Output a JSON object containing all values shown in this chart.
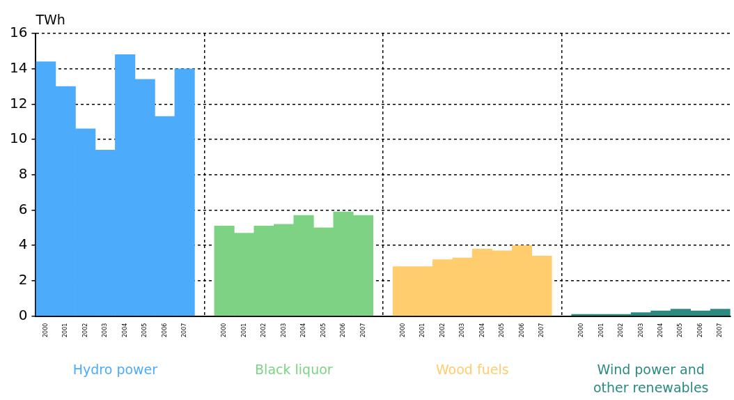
{
  "chart_data": {
    "type": "bar",
    "ylabel": "TWh",
    "categories": [
      "2000",
      "2001",
      "2002",
      "2003",
      "2004",
      "2005",
      "2006",
      "2007",
      null,
      "2000",
      "2001",
      "2002",
      "2003",
      "2004",
      "2005",
      "2006",
      "2007",
      null,
      "2000",
      "2001",
      "2002",
      "2003",
      "2004",
      "2005",
      "2006",
      "2007",
      null,
      "2000",
      "2001",
      "2002",
      "2003",
      "2004",
      "2005",
      "2006",
      "2007"
    ],
    "series": [
      {
        "name": "Hydro power",
        "color": "#4dabfc",
        "values": [
          14.4,
          13.0,
          10.6,
          9.4,
          14.8,
          13.4,
          11.3,
          14.0,
          null,
          null,
          null,
          null,
          null,
          null,
          null,
          null,
          null,
          null,
          null,
          null,
          null,
          null,
          null,
          null,
          null,
          null,
          null,
          null,
          null,
          null,
          null,
          null,
          null,
          null,
          null
        ]
      },
      {
        "name": "Black liquor",
        "color": "#7dd383",
        "values": [
          null,
          null,
          null,
          null,
          null,
          null,
          null,
          null,
          null,
          5.1,
          4.7,
          5.1,
          5.2,
          5.7,
          5.0,
          5.9,
          5.7,
          null,
          null,
          null,
          null,
          null,
          null,
          null,
          null,
          null,
          null,
          null,
          null,
          null,
          null,
          null,
          null,
          null,
          null
        ]
      },
      {
        "name": "Wood fuels",
        "color": "#ffcc6e",
        "values": [
          null,
          null,
          null,
          null,
          null,
          null,
          null,
          null,
          null,
          null,
          null,
          null,
          null,
          null,
          null,
          null,
          null,
          null,
          2.8,
          2.8,
          3.2,
          3.3,
          3.8,
          3.7,
          4.0,
          3.4,
          null,
          null,
          null,
          null,
          null,
          null,
          null,
          null,
          null
        ]
      },
      {
        "name": "Wind power and other renewables",
        "color": "#2a8a80",
        "values": [
          null,
          null,
          null,
          null,
          null,
          null,
          null,
          null,
          null,
          null,
          null,
          null,
          null,
          null,
          null,
          null,
          null,
          null,
          null,
          null,
          null,
          null,
          null,
          null,
          null,
          null,
          null,
          0.1,
          0.1,
          0.1,
          0.2,
          0.3,
          0.4,
          0.3,
          0.4
        ]
      }
    ],
    "ylim": [
      0,
      16
    ],
    "yticks": [
      0,
      2,
      4,
      6,
      8,
      10,
      12,
      14,
      16
    ],
    "grid": true,
    "legend": false
  }
}
